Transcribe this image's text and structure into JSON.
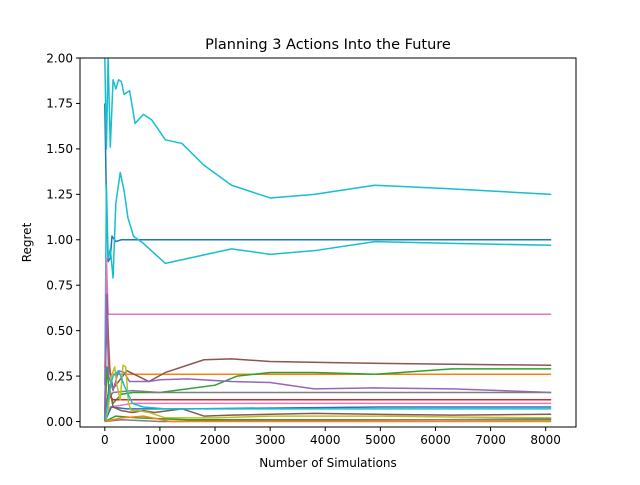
{
  "chart_data": {
    "type": "line",
    "title": "Planning 3 Actions Into the Future",
    "xlabel": "Number of Simulations",
    "ylabel": "Regret",
    "xlim": [
      -450,
      8550
    ],
    "ylim": [
      -0.03,
      2.0
    ],
    "xticks": [
      0,
      1000,
      2000,
      3000,
      4000,
      5000,
      6000,
      7000,
      8000
    ],
    "xtick_labels": [
      "0",
      "1000",
      "2000",
      "3000",
      "4000",
      "5000",
      "6000",
      "7000",
      "8000"
    ],
    "yticks": [
      0.0,
      0.25,
      0.5,
      0.75,
      1.0,
      1.25,
      1.5,
      1.75,
      2.0
    ],
    "ytick_labels": [
      "0.00",
      "0.25",
      "0.50",
      "0.75",
      "1.00",
      "1.25",
      "1.50",
      "1.75",
      "2.00"
    ],
    "grid": false,
    "legend": "none",
    "series": [
      {
        "color": "#1f77b4",
        "points": [
          [
            0,
            1.75
          ],
          [
            30,
            1.2
          ],
          [
            60,
            0.88
          ],
          [
            100,
            0.9
          ],
          [
            130,
            1.02
          ],
          [
            200,
            0.99
          ],
          [
            300,
            1.0
          ],
          [
            500,
            1.0
          ],
          [
            1000,
            1.0
          ],
          [
            2000,
            1.0
          ],
          [
            4000,
            1.0
          ],
          [
            6000,
            1.0
          ],
          [
            8100,
            1.0
          ]
        ]
      },
      {
        "color": "#17becf",
        "points": [
          [
            0,
            2.0
          ],
          [
            30,
            1.5
          ],
          [
            60,
            2.0
          ],
          [
            100,
            1.51
          ],
          [
            150,
            1.88
          ],
          [
            200,
            1.83
          ],
          [
            250,
            1.88
          ],
          [
            300,
            1.87
          ],
          [
            350,
            1.8
          ],
          [
            450,
            1.82
          ],
          [
            550,
            1.64
          ],
          [
            700,
            1.69
          ],
          [
            850,
            1.66
          ],
          [
            1100,
            1.55
          ],
          [
            1400,
            1.53
          ],
          [
            1800,
            1.41
          ],
          [
            2300,
            1.3
          ],
          [
            3000,
            1.23
          ],
          [
            3800,
            1.25
          ],
          [
            4900,
            1.3
          ],
          [
            6300,
            1.28
          ],
          [
            8100,
            1.25
          ]
        ]
      },
      {
        "color": "#17becf",
        "points": [
          [
            0,
            0.2
          ],
          [
            30,
            1.3
          ],
          [
            60,
            0.9
          ],
          [
            100,
            0.95
          ],
          [
            150,
            0.79
          ],
          [
            200,
            1.2
          ],
          [
            280,
            1.37
          ],
          [
            350,
            1.27
          ],
          [
            420,
            1.12
          ],
          [
            520,
            1.02
          ],
          [
            700,
            0.98
          ],
          [
            1100,
            0.87
          ],
          [
            1700,
            0.91
          ],
          [
            2300,
            0.95
          ],
          [
            3000,
            0.92
          ],
          [
            3800,
            0.94
          ],
          [
            4900,
            0.99
          ],
          [
            6300,
            0.98
          ],
          [
            8100,
            0.97
          ]
        ]
      },
      {
        "color": "#e377c2",
        "points": [
          [
            0,
            0.0
          ],
          [
            30,
            0.9
          ],
          [
            60,
            0.59
          ],
          [
            500,
            0.59
          ],
          [
            2000,
            0.59
          ],
          [
            5000,
            0.59
          ],
          [
            8100,
            0.59
          ]
        ]
      },
      {
        "color": "#ff7f0e",
        "points": [
          [
            0,
            0.3
          ],
          [
            50,
            0.55
          ],
          [
            100,
            0.26
          ],
          [
            300,
            0.26
          ],
          [
            1000,
            0.26
          ],
          [
            3000,
            0.26
          ],
          [
            6000,
            0.26
          ],
          [
            8100,
            0.26
          ]
        ]
      },
      {
        "color": "#8c564b",
        "points": [
          [
            0,
            0.05
          ],
          [
            40,
            0.7
          ],
          [
            80,
            0.3
          ],
          [
            150,
            0.18
          ],
          [
            250,
            0.22
          ],
          [
            400,
            0.28
          ],
          [
            600,
            0.25
          ],
          [
            800,
            0.22
          ],
          [
            1100,
            0.27
          ],
          [
            1800,
            0.34
          ],
          [
            2300,
            0.345
          ],
          [
            3000,
            0.33
          ],
          [
            4000,
            0.325
          ],
          [
            5000,
            0.32
          ],
          [
            6300,
            0.315
          ],
          [
            8100,
            0.31
          ]
        ]
      },
      {
        "color": "#2ca02c",
        "points": [
          [
            0,
            0.0
          ],
          [
            40,
            0.3
          ],
          [
            80,
            0.16
          ],
          [
            150,
            0.1
          ],
          [
            300,
            0.15
          ],
          [
            500,
            0.16
          ],
          [
            1000,
            0.16
          ],
          [
            2000,
            0.2
          ],
          [
            2400,
            0.25
          ],
          [
            3000,
            0.27
          ],
          [
            3800,
            0.27
          ],
          [
            4900,
            0.26
          ],
          [
            6300,
            0.29
          ],
          [
            8100,
            0.29
          ]
        ]
      },
      {
        "color": "#9467bd",
        "points": [
          [
            0,
            0.0
          ],
          [
            30,
            0.7
          ],
          [
            70,
            0.25
          ],
          [
            150,
            0.17
          ],
          [
            250,
            0.28
          ],
          [
            350,
            0.27
          ],
          [
            450,
            0.22
          ],
          [
            600,
            0.22
          ],
          [
            800,
            0.22
          ],
          [
            1000,
            0.23
          ],
          [
            1500,
            0.235
          ],
          [
            2300,
            0.22
          ],
          [
            3000,
            0.215
          ],
          [
            3800,
            0.18
          ],
          [
            4900,
            0.185
          ],
          [
            6300,
            0.18
          ],
          [
            8100,
            0.16
          ]
        ]
      },
      {
        "color": "#7f7f7f",
        "points": [
          [
            0,
            0.0
          ],
          [
            50,
            0.12
          ],
          [
            150,
            0.16
          ],
          [
            500,
            0.17
          ],
          [
            1000,
            0.16
          ],
          [
            2000,
            0.16
          ],
          [
            4000,
            0.16
          ],
          [
            6000,
            0.16
          ],
          [
            8100,
            0.16
          ]
        ]
      },
      {
        "color": "#d62728",
        "points": [
          [
            0,
            0.0
          ],
          [
            60,
            0.15
          ],
          [
            150,
            0.12
          ],
          [
            400,
            0.12
          ],
          [
            1000,
            0.12
          ],
          [
            4000,
            0.12
          ],
          [
            8100,
            0.12
          ]
        ]
      },
      {
        "color": "#e377c2",
        "points": [
          [
            0,
            0.0
          ],
          [
            100,
            0.08
          ],
          [
            500,
            0.1
          ],
          [
            1000,
            0.1
          ],
          [
            4000,
            0.1
          ],
          [
            8100,
            0.1
          ]
        ]
      },
      {
        "color": "#1f77b4",
        "points": [
          [
            0,
            0.0
          ],
          [
            120,
            0.08
          ],
          [
            400,
            0.07
          ],
          [
            1500,
            0.07
          ],
          [
            5000,
            0.08
          ],
          [
            8100,
            0.08
          ]
        ]
      },
      {
        "color": "#8c564b",
        "points": [
          [
            0,
            0.0
          ],
          [
            80,
            0.2
          ],
          [
            150,
            0.08
          ],
          [
            300,
            0.06
          ],
          [
            500,
            0.05
          ],
          [
            700,
            0.06
          ],
          [
            900,
            0.05
          ],
          [
            1400,
            0.07
          ],
          [
            1800,
            0.03
          ],
          [
            2300,
            0.035
          ],
          [
            3000,
            0.04
          ],
          [
            3800,
            0.045
          ],
          [
            4900,
            0.04
          ],
          [
            6300,
            0.035
          ],
          [
            8100,
            0.04
          ]
        ]
      },
      {
        "color": "#bcbd22",
        "points": [
          [
            0,
            0.0
          ],
          [
            60,
            0.06
          ],
          [
            120,
            0.25
          ],
          [
            180,
            0.3
          ],
          [
            220,
            0.2
          ],
          [
            280,
            0.12
          ],
          [
            330,
            0.31
          ],
          [
            380,
            0.3
          ],
          [
            430,
            0.1
          ],
          [
            480,
            0.06
          ],
          [
            600,
            0.06
          ],
          [
            800,
            0.05
          ],
          [
            1100,
            0.02
          ],
          [
            2000,
            0.02
          ],
          [
            3000,
            0.03
          ],
          [
            4000,
            0.03
          ],
          [
            5000,
            0.03
          ],
          [
            6300,
            0.025
          ],
          [
            8100,
            0.02
          ]
        ]
      },
      {
        "color": "#17becf",
        "points": [
          [
            0,
            0.0
          ],
          [
            100,
            0.2
          ],
          [
            150,
            0.25
          ],
          [
            250,
            0.28
          ],
          [
            350,
            0.2
          ],
          [
            500,
            0.1
          ],
          [
            700,
            0.08
          ],
          [
            1100,
            0.07
          ],
          [
            3000,
            0.07
          ],
          [
            8100,
            0.07
          ]
        ]
      },
      {
        "color": "#2ca02c",
        "points": [
          [
            0,
            0.0
          ],
          [
            200,
            0.03
          ],
          [
            600,
            0.02
          ],
          [
            1500,
            0.01
          ],
          [
            3000,
            0.01
          ],
          [
            6000,
            0.01
          ],
          [
            8100,
            0.01
          ]
        ]
      },
      {
        "color": "#7f7f7f",
        "points": [
          [
            0,
            0.0
          ],
          [
            300,
            0.01
          ],
          [
            1000,
            0.0
          ],
          [
            3000,
            0.005
          ],
          [
            6000,
            0.01
          ],
          [
            8100,
            0.015
          ]
        ]
      },
      {
        "color": "#ff7f0e",
        "points": [
          [
            0,
            0.0
          ],
          [
            300,
            0.02
          ],
          [
            700,
            0.03
          ],
          [
            1200,
            0.0
          ],
          [
            3000,
            0.0
          ],
          [
            6000,
            0.0
          ],
          [
            8100,
            0.0
          ]
        ]
      }
    ]
  }
}
